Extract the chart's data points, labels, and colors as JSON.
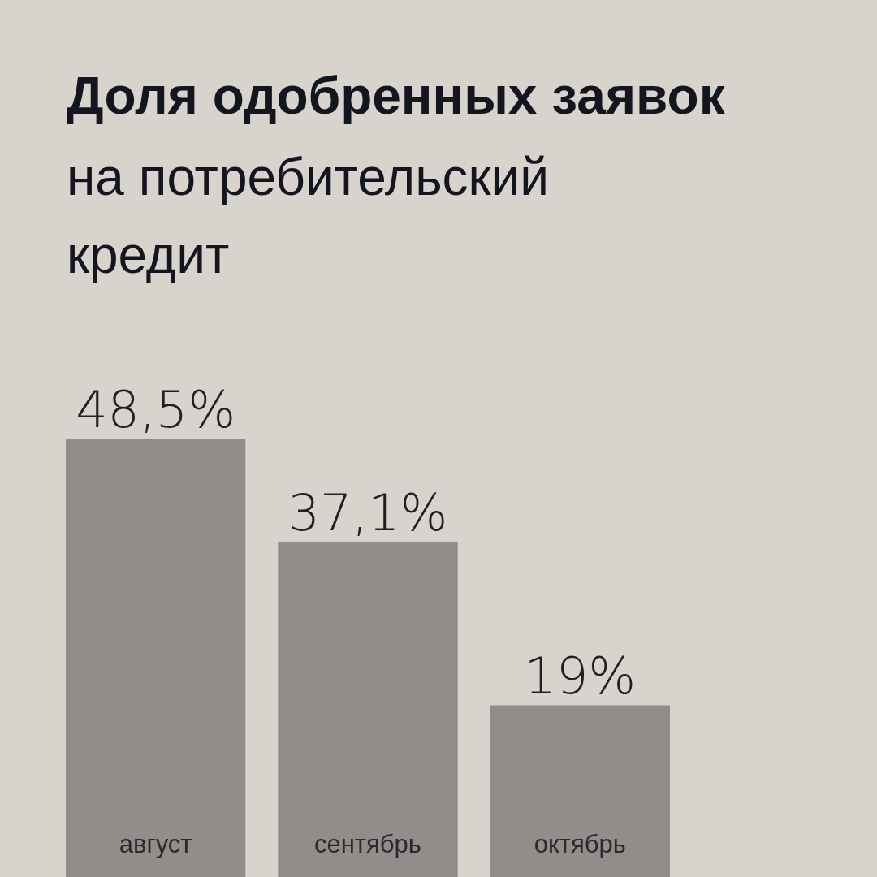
{
  "chart_data": {
    "type": "bar",
    "title": "Доля одобренных заявок",
    "subtitle": "на потребительский кредит",
    "categories": [
      "август",
      "сентябрь",
      "октябрь"
    ],
    "values": [
      48.5,
      37.1,
      19
    ],
    "value_labels": [
      "48,5%",
      "37,1%",
      "19%"
    ],
    "color": "#918d8b"
  }
}
